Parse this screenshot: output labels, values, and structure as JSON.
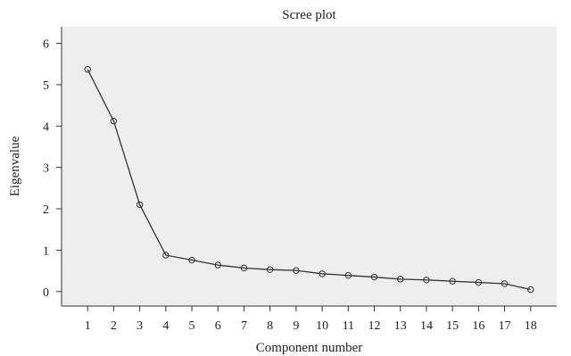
{
  "chart_data": {
    "type": "line",
    "title": "Scree plot",
    "xlabel": "Component number",
    "ylabel": "Eigenvalue",
    "x": [
      1,
      2,
      3,
      4,
      5,
      6,
      7,
      8,
      9,
      10,
      11,
      12,
      13,
      14,
      15,
      16,
      17,
      18
    ],
    "series": [
      {
        "values": [
          5.37,
          4.12,
          2.1,
          0.88,
          0.76,
          0.64,
          0.57,
          0.53,
          0.51,
          0.43,
          0.39,
          0.35,
          0.3,
          0.28,
          0.25,
          0.22,
          0.19,
          0.05
        ]
      }
    ],
    "ylim": [
      -0.35,
      6.4
    ],
    "xlim": [
      0,
      19
    ],
    "yticks": [
      0,
      1,
      2,
      3,
      4,
      5,
      6
    ],
    "xticks": [
      1,
      2,
      3,
      4,
      5,
      6,
      7,
      8,
      9,
      10,
      11,
      12,
      13,
      14,
      15,
      16,
      17,
      18
    ],
    "grid": false,
    "marker": "open-circle",
    "colors": {
      "plot_background": "#eeeeee",
      "line": "#333333",
      "axis": "#333333"
    }
  }
}
